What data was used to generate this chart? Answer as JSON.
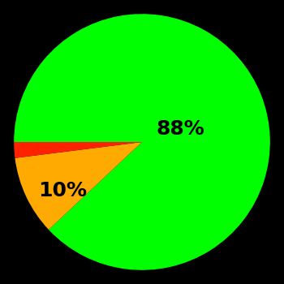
{
  "slices": [
    88,
    10,
    2
  ],
  "colors": [
    "#00ff00",
    "#ffaa00",
    "#ff2200"
  ],
  "labels": [
    "88%",
    "10%",
    ""
  ],
  "background_color": "#000000",
  "label_fontsize": 18,
  "label_color": "#000000",
  "startangle": 180,
  "counterclock": false
}
